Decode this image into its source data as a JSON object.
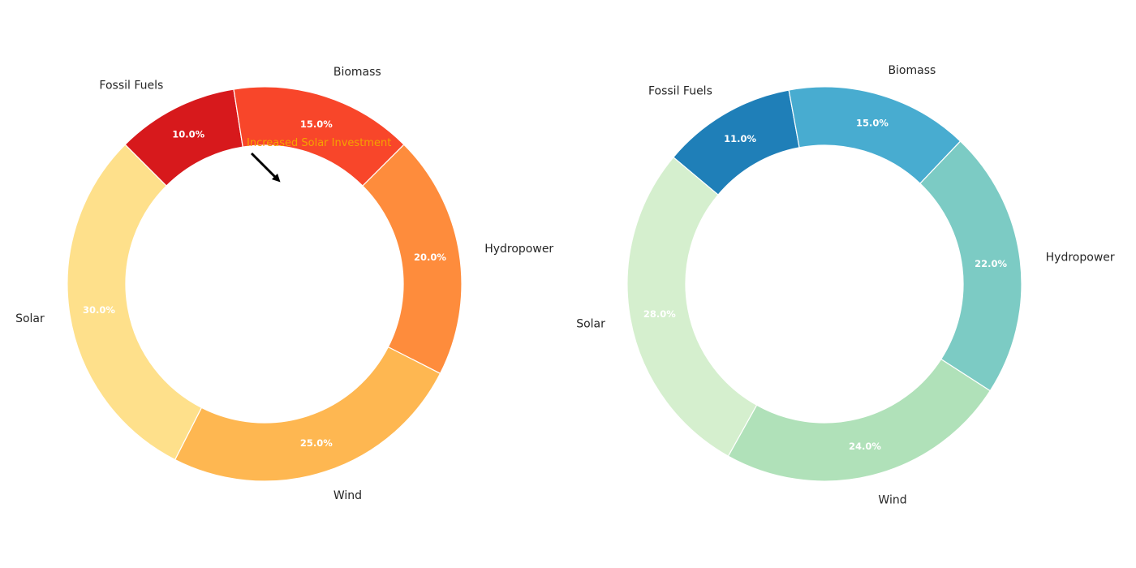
{
  "chart_data": [
    {
      "type": "pie",
      "donut": true,
      "categories": [
        "Fossil Fuels",
        "Biomass",
        "Hydropower",
        "Wind",
        "Solar"
      ],
      "values": [
        10.0,
        15.0,
        20.0,
        25.0,
        30.0
      ],
      "percent_labels": [
        "10.0%",
        "15.0%",
        "20.0%",
        "25.0%",
        "30.0%"
      ],
      "colors": [
        "#d7191c",
        "#f8462a",
        "#fe8c3c",
        "#feb751",
        "#fee08b"
      ],
      "annotation": {
        "text": "Increased Solar Investment"
      },
      "title": "",
      "legend": "none"
    },
    {
      "type": "pie",
      "donut": true,
      "categories": [
        "Fossil Fuels",
        "Biomass",
        "Hydropower",
        "Wind",
        "Solar"
      ],
      "values": [
        11.0,
        15.0,
        22.0,
        24.0,
        28.0
      ],
      "percent_labels": [
        "11.0%",
        "15.0%",
        "22.0%",
        "24.0%",
        "28.0%"
      ],
      "colors": [
        "#1f7fb8",
        "#48acd0",
        "#7ccbc4",
        "#b0e1b9",
        "#d5efce"
      ],
      "title": "",
      "legend": "none"
    }
  ]
}
